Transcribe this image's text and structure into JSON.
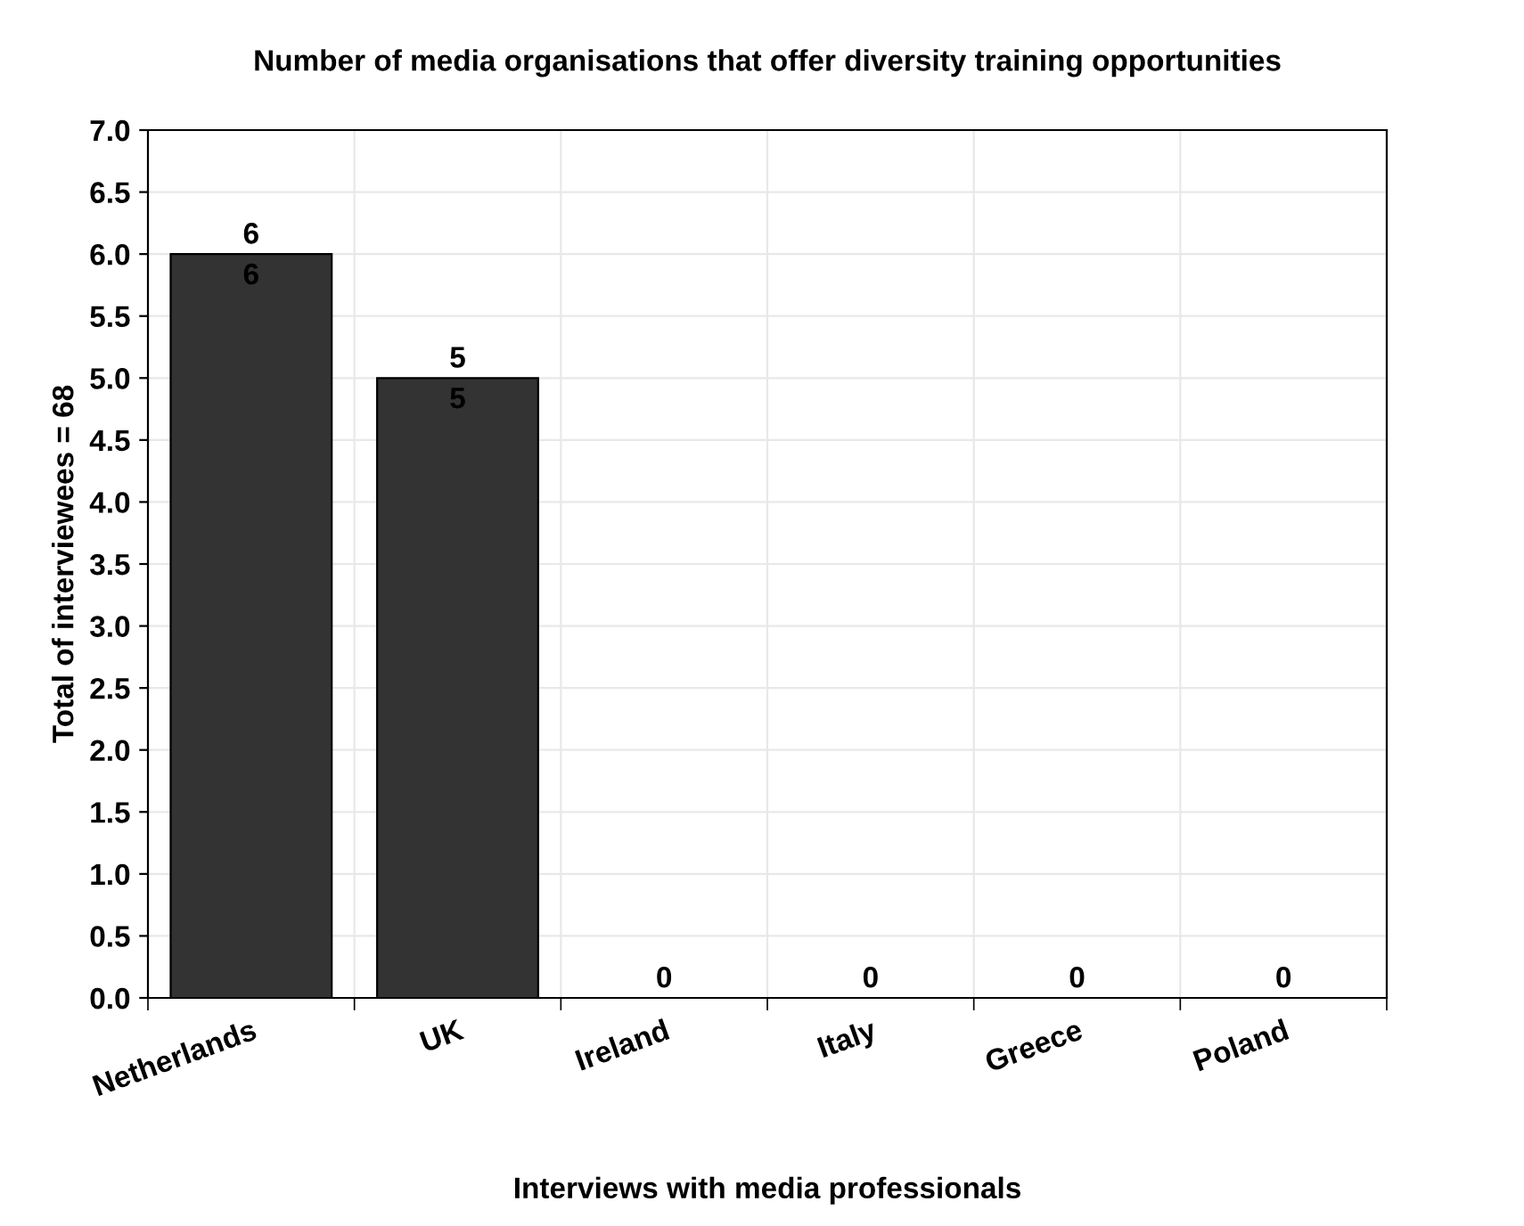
{
  "chart_data": {
    "type": "bar",
    "title": "Number of media organisations that offer diversity training opportunities",
    "xlabel": "Interviews with media professionals",
    "ylabel": "Total of interviewees = 68",
    "categories": [
      "Netherlands",
      "UK",
      "Ireland",
      "Italy",
      "Greece",
      "Poland"
    ],
    "values": [
      6,
      5,
      0,
      0,
      0,
      0
    ],
    "value_labels": [
      "6",
      "5",
      "0",
      "0",
      "0",
      "0"
    ],
    "color": "#333333",
    "annotations": [
      {
        "text": "6",
        "x": "Netherlands",
        "y": 6
      },
      {
        "text": "5",
        "x": "UK",
        "y": 5
      }
    ],
    "ylim": [
      0,
      7
    ],
    "yticks": [
      "0.0",
      "0.5",
      "1.0",
      "1.5",
      "2.0",
      "2.5",
      "3.0",
      "3.5",
      "4.0",
      "4.5",
      "5.0",
      "5.5",
      "6.0",
      "6.5",
      "7.0"
    ],
    "grid": true
  }
}
